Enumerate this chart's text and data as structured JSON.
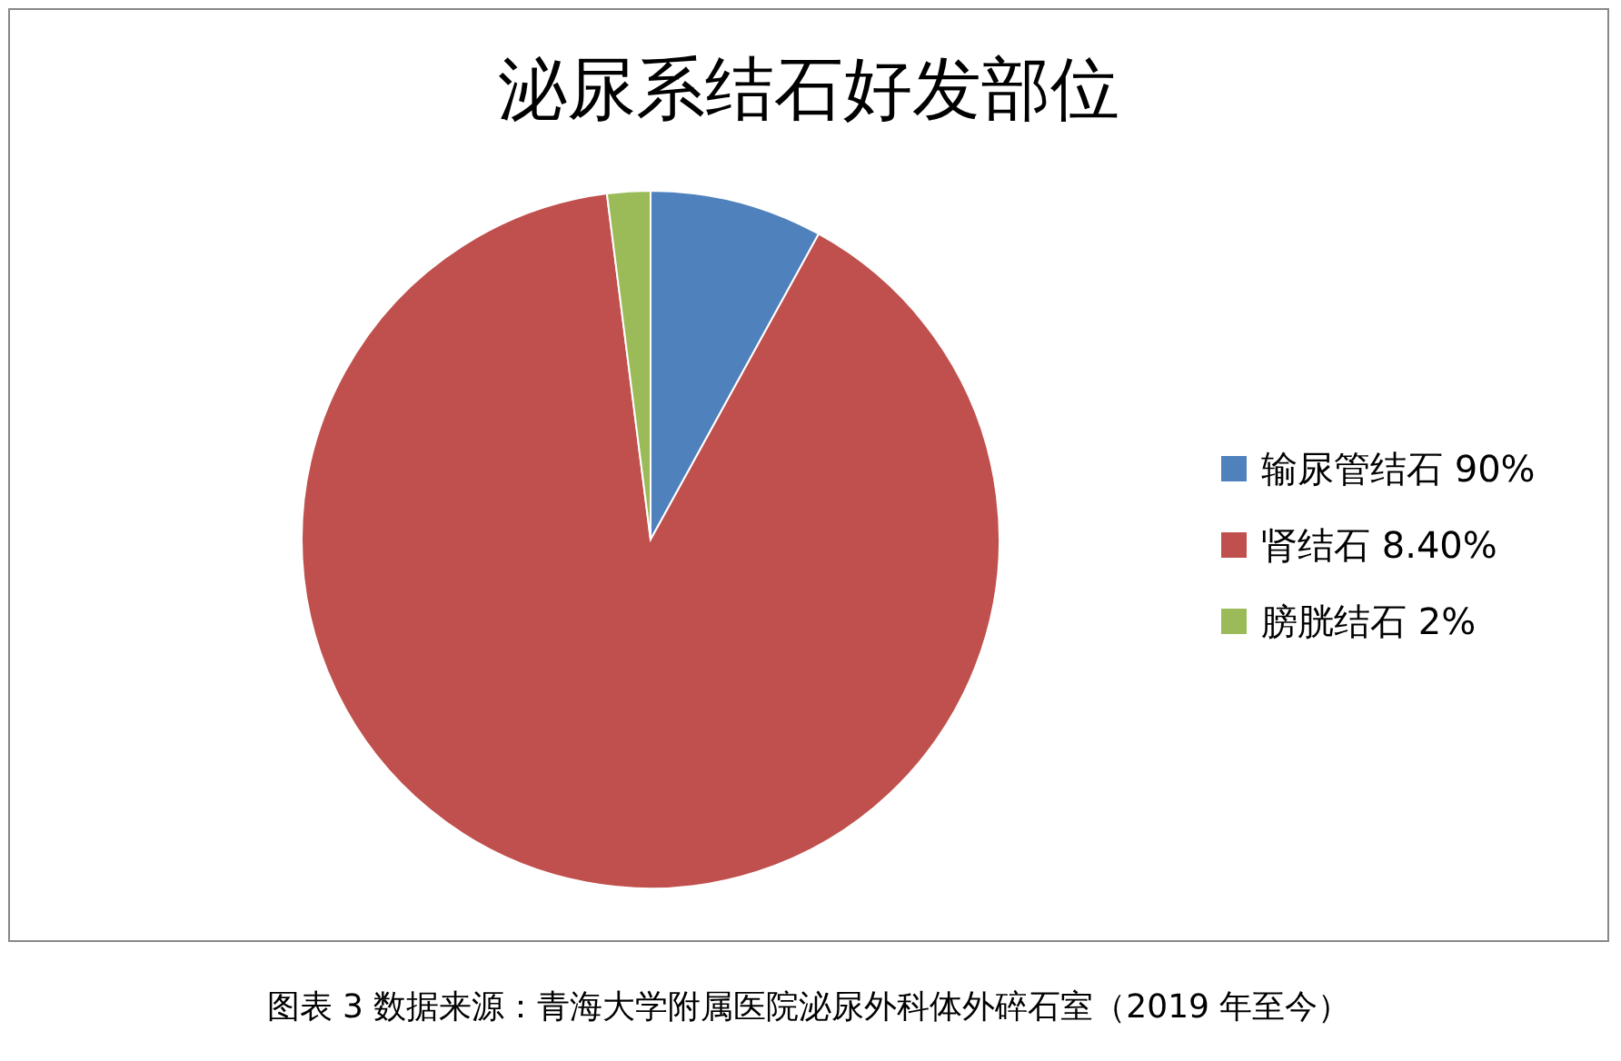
{
  "chart_data": {
    "type": "pie",
    "title": "泌尿系结石好发部位",
    "categories": [
      "输尿管结石 90%",
      "肾结石 8.40%",
      "膀胱结石 2%"
    ],
    "values": [
      8,
      90,
      2
    ],
    "colors": [
      "#4f81bd",
      "#c0504d",
      "#9bbb59"
    ],
    "legend": "right",
    "annotations": [
      "图表 3 数据来源：青海大学附属医院泌尿外科体外碎石室（2019 年至今）"
    ]
  }
}
